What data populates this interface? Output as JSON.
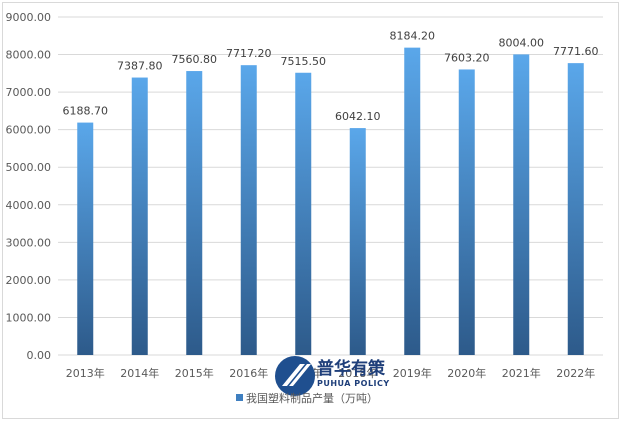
{
  "chart_data": {
    "type": "bar",
    "categories": [
      "2013年",
      "2014年",
      "2015年",
      "2016年",
      "2017年",
      "2018年",
      "2019年",
      "2020年",
      "2021年",
      "2022年"
    ],
    "series": [
      {
        "name": "我国塑料制品产量（万吨）",
        "values": [
          6188.7,
          7387.8,
          7560.8,
          7717.2,
          7515.5,
          6042.1,
          8184.2,
          7603.2,
          8004.0,
          7771.6
        ],
        "value_labels": [
          "6188.70",
          "7387.80",
          "7560.80",
          "7717.20",
          "7515.50",
          "6042.10",
          "8184.20",
          "7603.20",
          "8004.00",
          "7771.60"
        ]
      }
    ],
    "ylim": [
      0,
      9000
    ],
    "y_ticks": [
      "0.00",
      "1000.00",
      "2000.00",
      "3000.00",
      "4000.00",
      "5000.00",
      "6000.00",
      "7000.00",
      "8000.00",
      "9000.00"
    ],
    "grid": true,
    "legend_position": "bottom",
    "xlabel": "",
    "ylabel": ""
  },
  "colors": {
    "bar_top": "#5aa7ea",
    "bar_bottom": "#2d5a8a",
    "grid": "#d9d9d9",
    "legend_marker": "#3f7fc0"
  },
  "watermark": {
    "title": "普华有策",
    "subtitle": "PUHUA POLICY",
    "icon": "puhua-logo-icon"
  }
}
